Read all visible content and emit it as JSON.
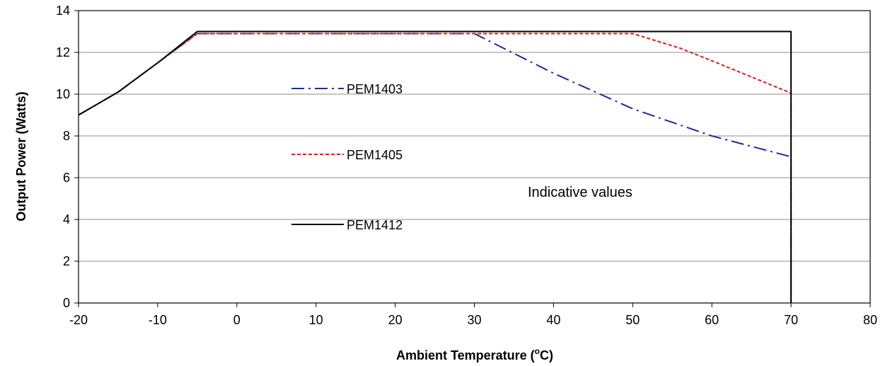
{
  "chart_data": {
    "type": "line",
    "title": "",
    "xlabel": "Ambient Temperature (",
    "xlabel_sup": "o",
    "xlabel_suffix": "C)",
    "ylabel": "Output Power (Watts)",
    "xlim": [
      -20,
      80
    ],
    "ylim": [
      0,
      14
    ],
    "xticks": [
      -20,
      -10,
      0,
      10,
      20,
      30,
      40,
      50,
      60,
      70,
      80
    ],
    "yticks": [
      0,
      2,
      4,
      6,
      8,
      10,
      12,
      14
    ],
    "grid": "horizontal",
    "legend_placement": "inside-left",
    "annotation": "Indicative values",
    "series": [
      {
        "name": "PEM1403",
        "color": "#1f2f8f",
        "style": "dash-dot",
        "x": [
          -20,
          -15,
          -10,
          -5,
          30,
          40,
          50,
          60,
          70,
          70
        ],
        "y": [
          9,
          10.1,
          11.5,
          12.9,
          12.9,
          11,
          9.3,
          8,
          7,
          0
        ]
      },
      {
        "name": "PEM1405",
        "color": "#d42020",
        "style": "dashed",
        "x": [
          -20,
          -15,
          -10,
          -5,
          50,
          56,
          60,
          70,
          70
        ],
        "y": [
          9,
          10.1,
          11.5,
          12.9,
          12.9,
          12.2,
          11.6,
          10.05,
          0
        ]
      },
      {
        "name": "PEM1412",
        "color": "#000000",
        "style": "solid",
        "x": [
          -20,
          -15,
          -10,
          -5,
          70,
          70
        ],
        "y": [
          9,
          10.1,
          11.5,
          13,
          13,
          0
        ]
      }
    ]
  }
}
